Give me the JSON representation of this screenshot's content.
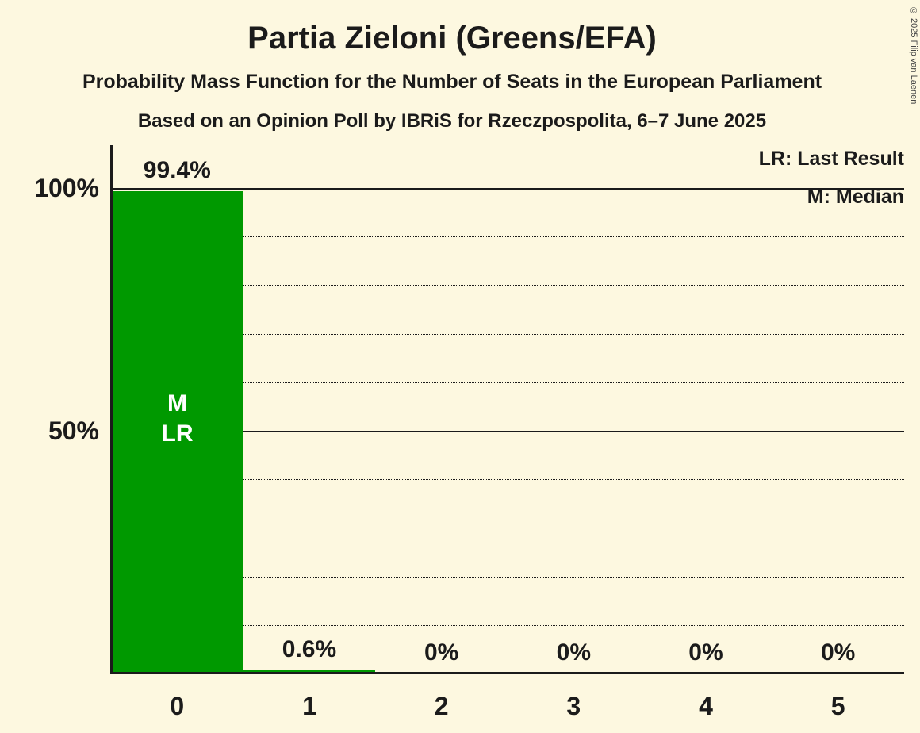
{
  "title": "Partia Zieloni (Greens/EFA)",
  "subtitle1": "Probability Mass Function for the Number of Seats in the European Parliament",
  "subtitle2": "Based on an Opinion Poll by IBRiS for Rzeczpospolita, 6–7 June 2025",
  "copyright": "© 2025 Filip van Laenen",
  "legend": {
    "lr": "LR: Last Result",
    "m": "M: Median"
  },
  "colors": {
    "background": "#FDF8E0",
    "bar": "#009900",
    "text": "#1B1B1B",
    "bar_label": "#FFFFFF"
  },
  "y_axis": {
    "ticks": [
      {
        "label": "100%",
        "value": 100
      },
      {
        "label": "50%",
        "value": 50
      }
    ]
  },
  "chart_data": {
    "type": "bar",
    "title": "Partia Zieloni (Greens/EFA)",
    "categories": [
      "0",
      "1",
      "2",
      "3",
      "4",
      "5"
    ],
    "values": [
      99.4,
      0.6,
      0,
      0,
      0,
      0
    ],
    "value_labels": [
      "99.4%",
      "0.6%",
      "0%",
      "0%",
      "0%",
      "0%"
    ],
    "xlabel": "",
    "ylabel": "",
    "ylim": [
      0,
      100
    ],
    "gridlines": {
      "solid": [
        50,
        100
      ],
      "dotted": [
        10,
        20,
        30,
        40,
        60,
        70,
        80,
        90
      ]
    },
    "annotations": {
      "median_bar": "0",
      "last_result_bar": "0",
      "bar_inner_labels": [
        "M",
        "LR"
      ]
    }
  }
}
